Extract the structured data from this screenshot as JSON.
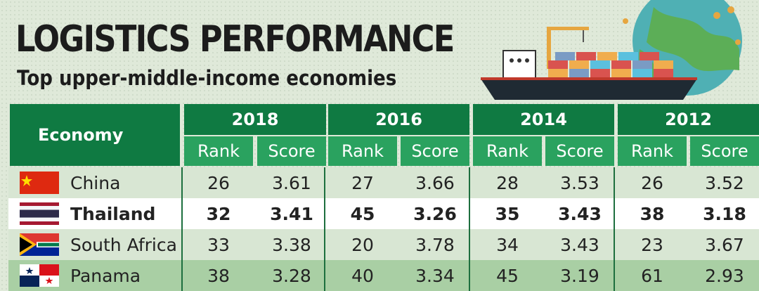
{
  "title": "LOGISTICS PERFORMANCE",
  "subtitle": "Top upper-middle-income economies",
  "chart_data": {
    "type": "table",
    "columns": {
      "economy": "Economy",
      "years": [
        "2018",
        "2016",
        "2014",
        "2012"
      ],
      "sub": [
        "Rank",
        "Score"
      ]
    },
    "rows": [
      {
        "economy": "China",
        "flag": "china-flag",
        "highlight": false,
        "values": [
          [
            "26",
            "3.61"
          ],
          [
            "27",
            "3.66"
          ],
          [
            "28",
            "3.53"
          ],
          [
            "26",
            "3.52"
          ]
        ]
      },
      {
        "economy": "Thailand",
        "flag": "thailand-flag",
        "highlight": true,
        "values": [
          [
            "32",
            "3.41"
          ],
          [
            "45",
            "3.26"
          ],
          [
            "35",
            "3.43"
          ],
          [
            "38",
            "3.18"
          ]
        ]
      },
      {
        "economy": "South Africa",
        "flag": "south-africa-flag",
        "highlight": false,
        "values": [
          [
            "33",
            "3.38"
          ],
          [
            "20",
            "3.78"
          ],
          [
            "34",
            "3.43"
          ],
          [
            "23",
            "3.67"
          ]
        ]
      },
      {
        "economy": "Panama",
        "flag": "panama-flag",
        "highlight": false,
        "values": [
          [
            "38",
            "3.28"
          ],
          [
            "40",
            "3.34"
          ],
          [
            "45",
            "3.19"
          ],
          [
            "61",
            "2.93"
          ]
        ]
      }
    ]
  },
  "colors": {
    "header_dark": "#0f7a42",
    "header_light": "#2aa25f",
    "background": "#dfe9d9",
    "highlight_row": "#ffffff"
  }
}
